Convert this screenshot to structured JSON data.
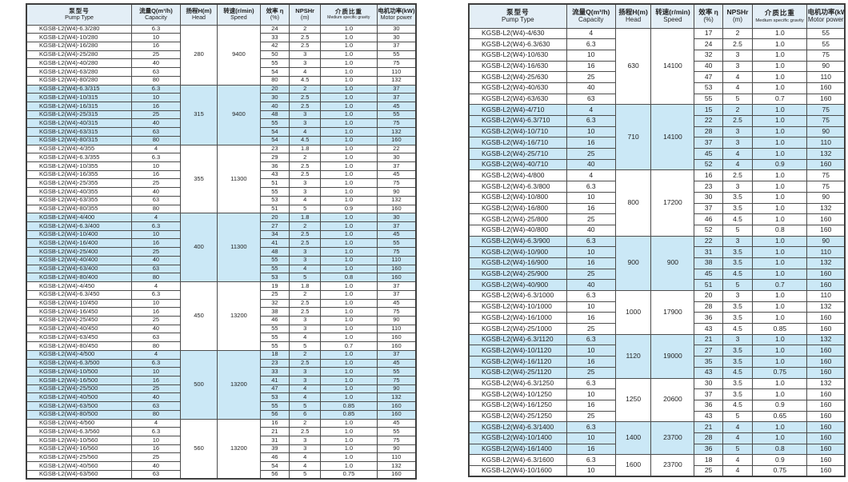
{
  "columns": {
    "pump": {
      "cn": "泵型号",
      "en": "Pump Type"
    },
    "capacity": {
      "cn": "流量Q(m³/h)",
      "en": "Capacity"
    },
    "head": {
      "cn": "扬程H(m)",
      "en": "Head"
    },
    "speed": {
      "cn": "转速(r/min)",
      "en": "Speed"
    },
    "efficiency": {
      "cn": "效率 η",
      "en": "(%)"
    },
    "npshr": {
      "cn": "NPSHr",
      "en": "(m)"
    },
    "gravity": {
      "cn": "介质比重",
      "en": "Medium specific gravity"
    },
    "power": {
      "cn": "电机功率(kW)",
      "en": "Motor power"
    }
  },
  "colors": {
    "group_shade": "#cbe8f6",
    "header_bg": "#e3eef6",
    "border": "#4d4d4d",
    "text": "#222222"
  },
  "row_fields": [
    "pump_type",
    "capacity",
    "efficiency",
    "npshr",
    "gravity",
    "power"
  ],
  "left_table": {
    "groups": [
      {
        "head": "280",
        "speed": "9400",
        "shaded": false,
        "rows": [
          [
            "KGSB-L2(W4)-6.3/280",
            "6.3",
            "24",
            "2",
            "1.0",
            "30"
          ],
          [
            "KGSB-L2(W4)-10/280",
            "10",
            "33",
            "2.5",
            "1.0",
            "30"
          ],
          [
            "KGSB-L2(W4)-16/280",
            "16",
            "42",
            "2.5",
            "1.0",
            "37"
          ],
          [
            "KGSB-L2(W4)-25/280",
            "25",
            "50",
            "3",
            "1.0",
            "55"
          ],
          [
            "KGSB-L2(W4)-40/280",
            "40",
            "55",
            "3",
            "1.0",
            "75"
          ],
          [
            "KGSB-L2(W4)-63/280",
            "63",
            "54",
            "4",
            "1.0",
            "110"
          ],
          [
            "KGSB-L2(W4)-80/280",
            "80",
            "80",
            "4.5",
            "1.0",
            "132"
          ]
        ]
      },
      {
        "head": "315",
        "speed": "9400",
        "shaded": true,
        "rows": [
          [
            "KGSB-L2(W4)-6.3/315",
            "6.3",
            "20",
            "2",
            "1.0",
            "37"
          ],
          [
            "KGSB-L2(W4)-10/315",
            "10",
            "30",
            "2.5",
            "1.0",
            "37"
          ],
          [
            "KGSB-L2(W4)-16/315",
            "16",
            "40",
            "2.5",
            "1.0",
            "45"
          ],
          [
            "KGSB-L2(W4)-25/315",
            "25",
            "48",
            "3",
            "1.0",
            "55"
          ],
          [
            "KGSB-L2(W4)-40/315",
            "40",
            "55",
            "3",
            "1.0",
            "75"
          ],
          [
            "KGSB-L2(W4)-63/315",
            "63",
            "54",
            "4",
            "1.0",
            "132"
          ],
          [
            "KGSB-L2(W4)-80/315",
            "80",
            "54",
            "4.5",
            "1.0",
            "160"
          ]
        ]
      },
      {
        "head": "355",
        "speed": "11300",
        "shaded": false,
        "rows": [
          [
            "KGSB-L2(W4)-4/355",
            "4",
            "23",
            "1.8",
            "1.0",
            "22"
          ],
          [
            "KGSB-L2(W4)-6.3/355",
            "6.3",
            "29",
            "2",
            "1.0",
            "30"
          ],
          [
            "KGSB-L2(W4)-10/355",
            "10",
            "36",
            "2.5",
            "1.0",
            "37"
          ],
          [
            "KGSB-L2(W4)-16/355",
            "16",
            "43",
            "2.5",
            "1.0",
            "45"
          ],
          [
            "KGSB-L2(W4)-25/355",
            "25",
            "51",
            "3",
            "1.0",
            "75"
          ],
          [
            "KGSB-L2(W4)-40/355",
            "40",
            "55",
            "3",
            "1.0",
            "90"
          ],
          [
            "KGSB-L2(W4)-63/355",
            "63",
            "53",
            "4",
            "1.0",
            "132"
          ],
          [
            "KGSB-L2(W4)-80/355",
            "80",
            "51",
            "5",
            "0.9",
            "160"
          ]
        ]
      },
      {
        "head": "400",
        "speed": "11300",
        "shaded": true,
        "rows": [
          [
            "KGSB-L2(W4)-4/400",
            "4",
            "20",
            "1.8",
            "1.0",
            "30"
          ],
          [
            "KGSB-L2(W4)-6.3/400",
            "6.3",
            "27",
            "2",
            "1.0",
            "37"
          ],
          [
            "KGSB-L2(W4)-10/400",
            "10",
            "34",
            "2.5",
            "1.0",
            "45"
          ],
          [
            "KGSB-L2(W4)-16/400",
            "16",
            "41",
            "2.5",
            "1.0",
            "55"
          ],
          [
            "KGSB-L2(W4)-25/400",
            "25",
            "48",
            "3",
            "1.0",
            "75"
          ],
          [
            "KGSB-L2(W4)-40/400",
            "40",
            "55",
            "3",
            "1.0",
            "110"
          ],
          [
            "KGSB-L2(W4)-63/400",
            "63",
            "55",
            "4",
            "1.0",
            "160"
          ],
          [
            "KGSB-L2(W4)-80/400",
            "80",
            "53",
            "5",
            "0.8",
            "160"
          ]
        ]
      },
      {
        "head": "450",
        "speed": "13200",
        "shaded": false,
        "rows": [
          [
            "KGSB-L2(W4)-4/450",
            "4",
            "19",
            "1.8",
            "1.0",
            "37"
          ],
          [
            "KGSB-L2(W4)-6.3/450",
            "6.3",
            "25",
            "2",
            "1.0",
            "37"
          ],
          [
            "KGSB-L2(W4)-10/450",
            "10",
            "32",
            "2.5",
            "1.0",
            "45"
          ],
          [
            "KGSB-L2(W4)-16/450",
            "16",
            "38",
            "2.5",
            "1.0",
            "75"
          ],
          [
            "KGSB-L2(W4)-25/450",
            "25",
            "46",
            "3",
            "1.0",
            "90"
          ],
          [
            "KGSB-L2(W4)-40/450",
            "40",
            "55",
            "3",
            "1.0",
            "110"
          ],
          [
            "KGSB-L2(W4)-63/450",
            "63",
            "55",
            "4",
            "1.0",
            "160"
          ],
          [
            "KGSB-L2(W4)-80/450",
            "80",
            "55",
            "5",
            "0.7",
            "160"
          ]
        ]
      },
      {
        "head": "500",
        "speed": "13200",
        "shaded": true,
        "rows": [
          [
            "KGSB-L2(W4)-4/500",
            "4",
            "18",
            "2",
            "1.0",
            "37"
          ],
          [
            "KGSB-L2(W4)-6.3/500",
            "6.3",
            "23",
            "2.5",
            "1.0",
            "45"
          ],
          [
            "KGSB-L2(W4)-10/500",
            "10",
            "33",
            "3",
            "1.0",
            "55"
          ],
          [
            "KGSB-L2(W4)-16/500",
            "16",
            "41",
            "3",
            "1.0",
            "75"
          ],
          [
            "KGSB-L2(W4)-25/500",
            "25",
            "47",
            "4",
            "1.0",
            "90"
          ],
          [
            "KGSB-L2(W4)-40/500",
            "40",
            "53",
            "4",
            "1.0",
            "132"
          ],
          [
            "KGSB-L2(W4)-63/500",
            "63",
            "55",
            "5",
            "0.85",
            "160"
          ],
          [
            "KGSB-L2(W4)-80/500",
            "80",
            "56",
            "6",
            "0.85",
            "160"
          ]
        ]
      },
      {
        "head": "560",
        "speed": "13200",
        "shaded": false,
        "rows": [
          [
            "KGSB-L2(W4)-4/560",
            "4",
            "16",
            "2",
            "1.0",
            "45"
          ],
          [
            "KGSB-L2(W4)-6.3/560",
            "6.3",
            "21",
            "2.5",
            "1.0",
            "55"
          ],
          [
            "KGSB-L2(W4)-10/560",
            "10",
            "31",
            "3",
            "1.0",
            "75"
          ],
          [
            "KGSB-L2(W4)-16/560",
            "16",
            "39",
            "3",
            "1.0",
            "90"
          ],
          [
            "KGSB-L2(W4)-25/560",
            "25",
            "46",
            "4",
            "1.0",
            "110"
          ],
          [
            "KGSB-L2(W4)-40/560",
            "40",
            "54",
            "4",
            "1.0",
            "132"
          ],
          [
            "KGSB-L2(W4)-63/560",
            "63",
            "56",
            "5",
            "0.75",
            "160"
          ]
        ]
      }
    ]
  },
  "right_table": {
    "groups": [
      {
        "head": "630",
        "speed": "14100",
        "shaded": false,
        "rows": [
          [
            "KGSB-L2(W4)-4/630",
            "4",
            "17",
            "2",
            "1.0",
            "55"
          ],
          [
            "KGSB-L2(W4)-6.3/630",
            "6.3",
            "24",
            "2.5",
            "1.0",
            "55"
          ],
          [
            "KGSB-L2(W4)-10/630",
            "10",
            "32",
            "3",
            "1.0",
            "75"
          ],
          [
            "KGSB-L2(W4)-16/630",
            "16",
            "40",
            "3",
            "1.0",
            "90"
          ],
          [
            "KGSB-L2(W4)-25/630",
            "25",
            "47",
            "4",
            "1.0",
            "110"
          ],
          [
            "KGSB-L2(W4)-40/630",
            "40",
            "53",
            "4",
            "1.0",
            "160"
          ],
          [
            "KGSB-L2(W4)-63/630",
            "63",
            "55",
            "5",
            "0.7",
            "160"
          ]
        ]
      },
      {
        "head": "710",
        "speed": "14100",
        "shaded": true,
        "rows": [
          [
            "KGSB-L2(W4)-4/710",
            "4",
            "15",
            "2",
            "1.0",
            "75"
          ],
          [
            "KGSB-L2(W4)-6.3/710",
            "6.3",
            "22",
            "2.5",
            "1.0",
            "75"
          ],
          [
            "KGSB-L2(W4)-10/710",
            "10",
            "28",
            "3",
            "1.0",
            "90"
          ],
          [
            "KGSB-L2(W4)-16/710",
            "16",
            "37",
            "3",
            "1.0",
            "110"
          ],
          [
            "KGSB-L2(W4)-25/710",
            "25",
            "45",
            "4",
            "1.0",
            "132"
          ],
          [
            "KGSB-L2(W4)-40/710",
            "40",
            "52",
            "4",
            "0.9",
            "160"
          ]
        ]
      },
      {
        "head": "800",
        "speed": "17200",
        "shaded": false,
        "rows": [
          [
            "KGSB-L2(W4)-4/800",
            "4",
            "16",
            "2.5",
            "1.0",
            "75"
          ],
          [
            "KGSB-L2(W4)-6.3/800",
            "6.3",
            "23",
            "3",
            "1.0",
            "75"
          ],
          [
            "KGSB-L2(W4)-10/800",
            "10",
            "30",
            "3.5",
            "1.0",
            "90"
          ],
          [
            "KGSB-L2(W4)-16/800",
            "16",
            "37",
            "3.5",
            "1.0",
            "132"
          ],
          [
            "KGSB-L2(W4)-25/800",
            "25",
            "46",
            "4.5",
            "1.0",
            "160"
          ],
          [
            "KGSB-L2(W4)-40/800",
            "40",
            "52",
            "5",
            "0.8",
            "160"
          ]
        ]
      },
      {
        "head": "900",
        "speed": "900",
        "shaded": true,
        "rows": [
          [
            "KGSB-L2(W4)-6.3/900",
            "6.3",
            "22",
            "3",
            "1.0",
            "90"
          ],
          [
            "KGSB-L2(W4)-10/900",
            "10",
            "31",
            "3.5",
            "1.0",
            "110"
          ],
          [
            "KGSB-L2(W4)-16/900",
            "16",
            "38",
            "3.5",
            "1.0",
            "132"
          ],
          [
            "KGSB-L2(W4)-25/900",
            "25",
            "45",
            "4.5",
            "1.0",
            "160"
          ],
          [
            "KGSB-L2(W4)-40/900",
            "40",
            "51",
            "5",
            "0.7",
            "160"
          ]
        ]
      },
      {
        "head": "1000",
        "speed": "17900",
        "shaded": false,
        "rows": [
          [
            "KGSB-L2(W4)-6.3/1000",
            "6.3",
            "20",
            "3",
            "1.0",
            "110"
          ],
          [
            "KGSB-L2(W4)-10/1000",
            "10",
            "28",
            "3.5",
            "1.0",
            "132"
          ],
          [
            "KGSB-L2(W4)-16/1000",
            "16",
            "36",
            "3.5",
            "1.0",
            "160"
          ],
          [
            "KGSB-L2(W4)-25/1000",
            "25",
            "43",
            "4.5",
            "0.85",
            "160"
          ]
        ]
      },
      {
        "head": "1120",
        "speed": "19000",
        "shaded": true,
        "rows": [
          [
            "KGSB-L2(W4)-6.3/1120",
            "6.3",
            "21",
            "3",
            "1.0",
            "132"
          ],
          [
            "KGSB-L2(W4)-10/1120",
            "10",
            "27",
            "3.5",
            "1.0",
            "160"
          ],
          [
            "KGSB-L2(W4)-16/1120",
            "16",
            "35",
            "3.5",
            "1.0",
            "160"
          ],
          [
            "KGSB-L2(W4)-25/1120",
            "25",
            "43",
            "4.5",
            "0.75",
            "160"
          ]
        ]
      },
      {
        "head": "1250",
        "speed": "20600",
        "shaded": false,
        "rows": [
          [
            "KGSB-L2(W4)-6.3/1250",
            "6.3",
            "30",
            "3.5",
            "1.0",
            "132"
          ],
          [
            "KGSB-L2(W4)-10/1250",
            "10",
            "37",
            "3.5",
            "1.0",
            "160"
          ],
          [
            "KGSB-L2(W4)-16/1250",
            "16",
            "36",
            "4.5",
            "0.9",
            "160"
          ],
          [
            "KGSB-L2(W4)-25/1250",
            "25",
            "43",
            "5",
            "0.65",
            "160"
          ]
        ]
      },
      {
        "head": "1400",
        "speed": "23700",
        "shaded": true,
        "rows": [
          [
            "KGSB-L2(W4)-6.3/1400",
            "6.3",
            "21",
            "4",
            "1.0",
            "160"
          ],
          [
            "KGSB-L2(W4)-10/1400",
            "10",
            "28",
            "4",
            "1.0",
            "160"
          ],
          [
            "KGSB-L2(W4)-16/1400",
            "16",
            "36",
            "5",
            "0.8",
            "160"
          ]
        ]
      },
      {
        "head": "1600",
        "speed": "23700",
        "shaded": false,
        "rows": [
          [
            "KGSB-L2(W4)-6.3/1600",
            "6.3",
            "18",
            "4",
            "0.9",
            "160"
          ],
          [
            "KGSB-L2(W4)-10/1600",
            "10",
            "25",
            "4",
            "0.75",
            "160"
          ]
        ]
      }
    ]
  }
}
